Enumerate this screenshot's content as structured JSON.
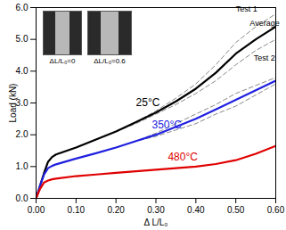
{
  "chart_data": {
    "type": "line",
    "x_label": "Δ L/L₀",
    "y_label": "Load (kN)",
    "xlim": [
      0,
      0.6
    ],
    "xticks": [
      0,
      0.1,
      0.2,
      0.3,
      0.4,
      0.5,
      0.6
    ],
    "ylim": [
      0,
      6
    ],
    "yticks": [
      0,
      1,
      2,
      3,
      4,
      5,
      6
    ],
    "x": [
      0,
      0.01,
      0.02,
      0.03,
      0.04,
      0.05,
      0.1,
      0.15,
      0.2,
      0.25,
      0.3,
      0.35,
      0.4,
      0.45,
      0.5,
      0.55,
      0.6
    ],
    "series": [
      {
        "name": "25°C",
        "color": "#000000",
        "line_style": "solid",
        "label_x": 0.25,
        "label_y": 3.0,
        "values": [
          0,
          0.4,
          0.8,
          1.15,
          1.3,
          1.38,
          1.6,
          1.85,
          2.1,
          2.4,
          2.7,
          3.05,
          3.45,
          3.95,
          4.55,
          5.0,
          5.4
        ],
        "tests": [
          [
            0,
            0.4,
            0.8,
            1.15,
            1.3,
            1.38,
            1.6,
            1.85,
            2.1,
            2.4,
            2.75,
            3.15,
            3.6,
            4.2,
            4.9,
            5.4,
            5.8
          ],
          [
            0,
            0.4,
            0.8,
            1.15,
            1.3,
            1.38,
            1.6,
            1.85,
            2.1,
            2.35,
            2.65,
            2.95,
            3.3,
            3.7,
            4.2,
            4.65,
            5.0
          ]
        ]
      },
      {
        "name": "350°C",
        "color": "#2020e0",
        "line_style": "solid",
        "label_x": 0.29,
        "label_y": 2.3,
        "values": [
          0,
          0.4,
          0.75,
          0.95,
          1.02,
          1.07,
          1.25,
          1.42,
          1.6,
          1.8,
          2.0,
          2.25,
          2.5,
          2.8,
          3.1,
          3.4,
          3.7
        ],
        "tests": [
          [
            0,
            0.4,
            0.75,
            0.95,
            1.02,
            1.07,
            1.25,
            1.42,
            1.6,
            1.8,
            2.05,
            2.35,
            2.65,
            2.95,
            3.3,
            3.55,
            3.8
          ],
          [
            0,
            0.4,
            0.75,
            0.95,
            1.02,
            1.07,
            1.25,
            1.42,
            1.6,
            1.8,
            1.95,
            2.15,
            2.35,
            2.65,
            2.9,
            3.25,
            3.6
          ]
        ]
      },
      {
        "name": "480°C",
        "color": "#e00000",
        "line_style": "solid",
        "label_x": 0.33,
        "label_y": 1.3,
        "values": [
          0,
          0.3,
          0.5,
          0.56,
          0.6,
          0.62,
          0.7,
          0.75,
          0.8,
          0.85,
          0.9,
          0.95,
          1.0,
          1.08,
          1.2,
          1.4,
          1.65
        ]
      }
    ],
    "tests_color": "#888888",
    "tests_line_style": "dashed",
    "annotations": [
      {
        "text": "Test 1",
        "x": 0.5,
        "y": 5.95
      },
      {
        "text": "Average",
        "x": 0.535,
        "y": 5.5
      },
      {
        "text": "Test 2",
        "x": 0.545,
        "y": 4.4
      }
    ],
    "insets": [
      {
        "label": "ΔL/L₀=0"
      },
      {
        "label": "ΔL/L₀=0.6"
      }
    ],
    "grid": false
  }
}
